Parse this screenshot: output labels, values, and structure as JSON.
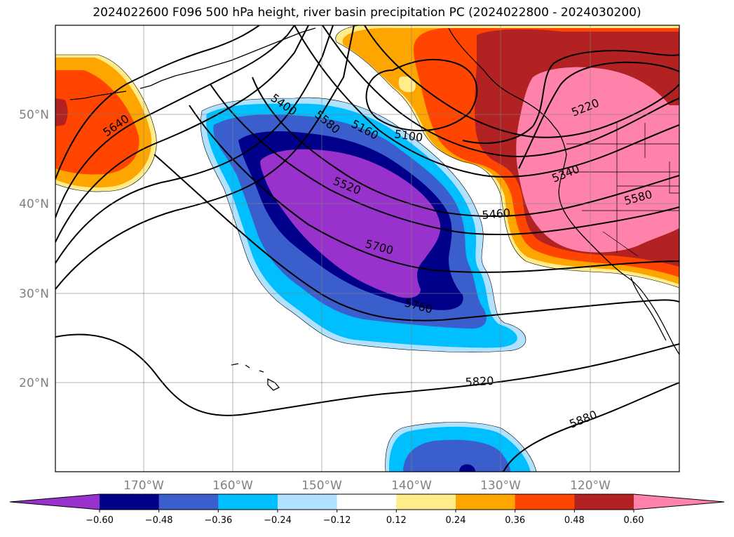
{
  "title": "2024022600 F096 500 hPa height, river basin precipitation PC (2024022800 - 2024030200)",
  "lon_labels": [
    "170°W",
    "160°W",
    "150°W",
    "140°W",
    "130°W",
    "120°W"
  ],
  "lat_labels": [
    "50°N",
    "40°N",
    "30°N",
    "20°N"
  ],
  "contour_labels": [
    "5640",
    "5400",
    "5580",
    "5160",
    "5100",
    "5220",
    "5520",
    "5340",
    "5460",
    "5580",
    "5700",
    "5760",
    "5820",
    "5880"
  ],
  "colorbar": {
    "colors": [
      "#9932cc",
      "#00008b",
      "#3a5fcd",
      "#00bfff",
      "#b0e2ff",
      "#ffffff",
      "#ffec8b",
      "#ffa500",
      "#ff4500",
      "#b22222",
      "#ff82ab"
    ],
    "labels": [
      "−0.60",
      "−0.48",
      "−0.36",
      "−0.24",
      "−0.12",
      "0.12",
      "0.24",
      "0.36",
      "0.48",
      "0.60"
    ]
  }
}
